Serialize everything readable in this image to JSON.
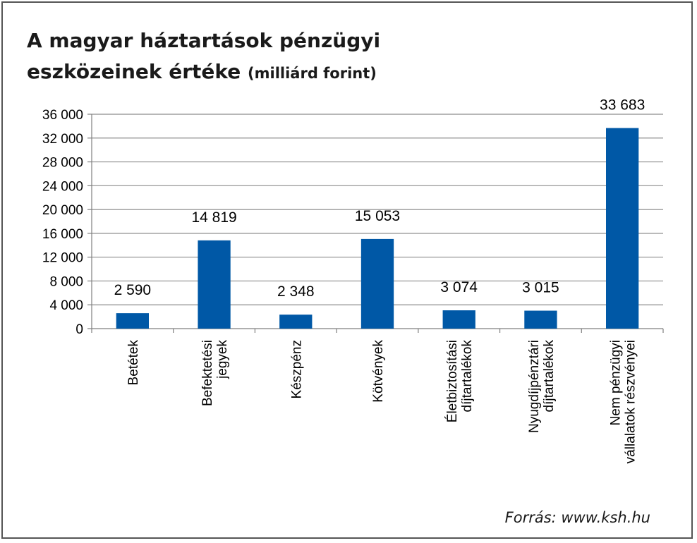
{
  "title_main": "A magyar háztartások pénzügyi",
  "title_line2": "eszközeinek értéke",
  "title_unit": "(milliárd forint)",
  "source": "Forrás: www.ksh.hu",
  "colors": {
    "bar": "#0058A6",
    "grid": "#8c8c8c",
    "axis": "#7f7f7f"
  },
  "chart_data": {
    "type": "bar",
    "title": "A magyar háztartások pénzügyi eszközeinek értéke (milliárd forint)",
    "categories": [
      [
        "Betétek"
      ],
      [
        "Befektetési",
        "jegyek"
      ],
      [
        "Készpénz"
      ],
      [
        "Kötvények"
      ],
      [
        "Életbiztosítási",
        "díjtartalékok"
      ],
      [
        "Nyugdíjpénztári",
        "díjtartalékok"
      ],
      [
        "Nem pénzügyi",
        "vállalatok részvényei"
      ]
    ],
    "values": [
      2590,
      14819,
      2348,
      15053,
      3074,
      3015,
      33683
    ],
    "value_labels": [
      "2 590",
      "14 819",
      "2 348",
      "15 053",
      "3 074",
      "3 015",
      "33 683"
    ],
    "yticks": [
      "0",
      "4 000",
      "8 000",
      "12 000",
      "16 000",
      "20 000",
      "24 000",
      "28 000",
      "32 000",
      "36 000"
    ],
    "ylim": [
      0,
      36000
    ],
    "ytick_step": 4000,
    "grid": true,
    "legend": "none"
  }
}
